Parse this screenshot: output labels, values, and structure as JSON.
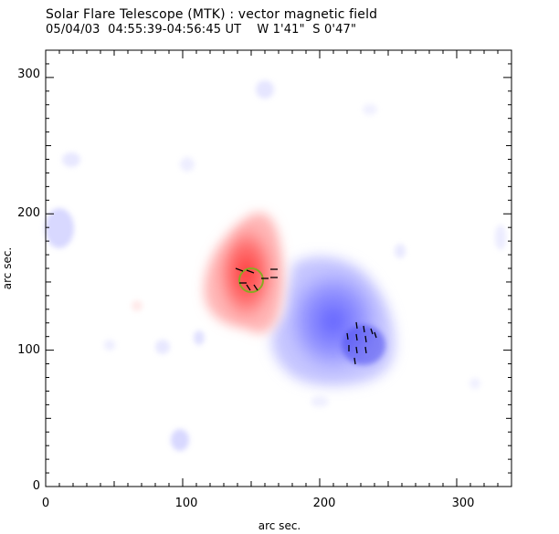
{
  "header": {
    "title": "Solar Flare Telescope (MTK) : vector magnetic field",
    "subtitle": "05/04/03  04:55:39-04:56:45 UT    W 1'41\"  S 0'47\""
  },
  "axes": {
    "xlabel": "arc sec.",
    "ylabel": "arc sec.",
    "xticks": [
      "0",
      "100",
      "200",
      "300"
    ],
    "yticks": [
      "0",
      "100",
      "200",
      "300"
    ],
    "xlim": [
      0,
      340
    ],
    "ylim": [
      0,
      320
    ]
  },
  "colors": {
    "positive_polarity": "#ff8080",
    "negative_polarity": "#8080ff",
    "circle": "#88aa22",
    "vectors": "#000000",
    "frame": "#000000"
  }
}
